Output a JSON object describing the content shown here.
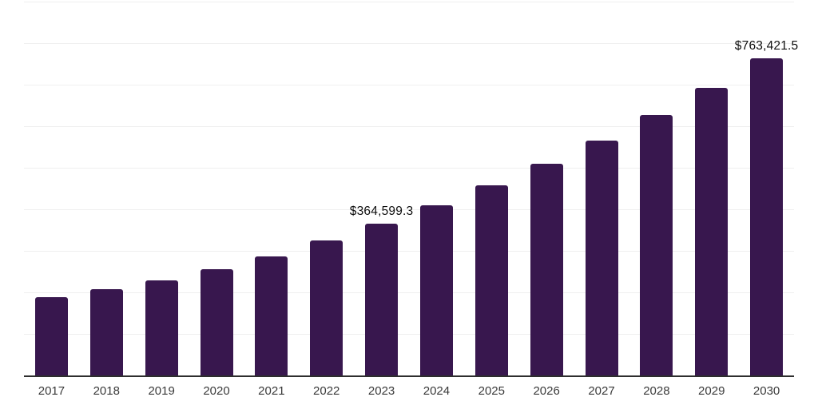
{
  "chart": {
    "bar_color": "#38174e",
    "axis_color": "#2e2e2e",
    "gridline_color": "#efefef",
    "data_label_color": "#0e0e0e",
    "tick_label_color": "#3a3a3a",
    "background_color": "#ffffff"
  },
  "chart_data": {
    "type": "bar",
    "title": "",
    "xlabel": "",
    "ylabel": "",
    "categories": [
      "2017",
      "2018",
      "2019",
      "2020",
      "2021",
      "2022",
      "2023",
      "2024",
      "2025",
      "2026",
      "2027",
      "2028",
      "2029",
      "2030"
    ],
    "values": [
      188500,
      207100,
      228300,
      256400,
      287200,
      325600,
      364599.3,
      409600,
      457100,
      509600,
      565400,
      626300,
      692300,
      763421.5
    ],
    "data_labels": [
      null,
      null,
      null,
      null,
      null,
      null,
      "$364,599.3",
      null,
      null,
      null,
      null,
      null,
      null,
      "$763,421.5"
    ],
    "ylim": [
      0,
      900000
    ],
    "gridline_interval": 100000,
    "grid": "horizontal",
    "legend": "none",
    "y_axis_tick_labels_visible": false
  }
}
